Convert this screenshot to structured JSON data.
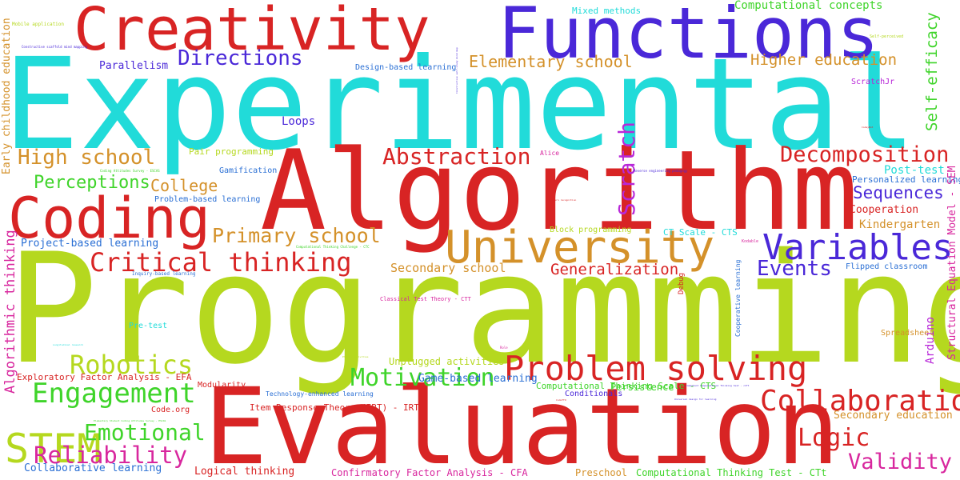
{
  "words": [
    {
      "text": "Programming",
      "color": "#b5d81f"
    },
    {
      "text": "Experimental",
      "color": "#21dbd9"
    },
    {
      "text": "Algorithm",
      "color": "#d82424"
    },
    {
      "text": "Evaluation",
      "color": "#d82424"
    },
    {
      "text": "Functions",
      "color": "#4a28d8"
    },
    {
      "text": "Creativity",
      "color": "#d82424"
    },
    {
      "text": "Coding",
      "color": "#d82424"
    },
    {
      "text": "University",
      "color": "#d4912a"
    },
    {
      "text": "Problem solving",
      "color": "#d82424"
    },
    {
      "text": "Variables",
      "color": "#4a28d8"
    },
    {
      "text": "STEM",
      "color": "#b5d81f"
    },
    {
      "text": "Collaboration",
      "color": "#d82424"
    },
    {
      "text": "Critical thinking",
      "color": "#d82424"
    },
    {
      "text": "Engagement",
      "color": "#3fd42a"
    },
    {
      "text": "Robotics",
      "color": "#b5d81f"
    },
    {
      "text": "Motivation",
      "color": "#3fd42a"
    },
    {
      "text": "Abstraction",
      "color": "#d82424"
    },
    {
      "text": "Decomposition",
      "color": "#d82424"
    },
    {
      "text": "Primary school",
      "color": "#d4912a"
    },
    {
      "text": "Reliability",
      "color": "#d8279e"
    },
    {
      "text": "Emotional",
      "color": "#3fd42a"
    },
    {
      "text": "Logic",
      "color": "#d82424"
    },
    {
      "text": "Validity",
      "color": "#d8279e"
    },
    {
      "text": "Scratch",
      "color": "#b828d8"
    },
    {
      "text": "Directions",
      "color": "#4a28d8"
    },
    {
      "text": "High school",
      "color": "#d4912a"
    },
    {
      "text": "Events",
      "color": "#4a28d8"
    },
    {
      "text": "Sequences",
      "color": "#4a28d8"
    },
    {
      "text": "Perceptions",
      "color": "#3fd42a"
    },
    {
      "text": "Elementary school",
      "color": "#d4912a"
    },
    {
      "text": "Higher education",
      "color": "#d4912a"
    },
    {
      "text": "Self-efficacy",
      "color": "#3fd42a"
    },
    {
      "text": "College",
      "color": "#d4912a"
    },
    {
      "text": "Generalization",
      "color": "#d82424"
    },
    {
      "text": "Algorithmic thinking",
      "color": "#d8279e"
    },
    {
      "text": "Secondary school",
      "color": "#d4912a"
    },
    {
      "text": "Computational concepts",
      "color": "#3fd42a"
    },
    {
      "text": "Early childhood education",
      "color": "#d4912a"
    },
    {
      "text": "Structural Equation Model - SEM",
      "color": "#d8279e"
    },
    {
      "text": "Arduino",
      "color": "#b828d8"
    },
    {
      "text": "Secondary education",
      "color": "#d4912a"
    },
    {
      "text": "Kindergarten",
      "color": "#d4912a"
    },
    {
      "text": "Cooperation",
      "color": "#d82424"
    },
    {
      "text": "Post-test",
      "color": "#21dbd9"
    },
    {
      "text": "Personalized learning",
      "color": "#2a6fd4"
    },
    {
      "text": "Loops",
      "color": "#4a28d8"
    },
    {
      "text": "Parallelism",
      "color": "#4a28d8"
    },
    {
      "text": "Mixed methods",
      "color": "#21dbd9"
    },
    {
      "text": "Design-based learning",
      "color": "#2a6fd4"
    },
    {
      "text": "Pair programming",
      "color": "#b5d81f"
    },
    {
      "text": "Gamification",
      "color": "#2a6fd4"
    },
    {
      "text": "Problem-based learning",
      "color": "#2a6fd4"
    },
    {
      "text": "Project-based learning",
      "color": "#2a6fd4"
    },
    {
      "text": "CT Scale - CTS",
      "color": "#21dbd9"
    },
    {
      "text": "Block programming",
      "color": "#b5d81f"
    },
    {
      "text": "Flipped classroom",
      "color": "#2a6fd4"
    },
    {
      "text": "ScratchJr",
      "color": "#b828d8"
    },
    {
      "text": "Exploratory Factor Analysis - EFA",
      "color": "#d82424"
    },
    {
      "text": "Unplugged activities",
      "color": "#b5d81f"
    },
    {
      "text": "Computational Thinking Scale - CTS",
      "color": "#3fd42a"
    },
    {
      "text": "Game-based learning",
      "color": "#2a6fd4"
    },
    {
      "text": "Conditionals",
      "color": "#4a28d8"
    },
    {
      "text": "Modularity",
      "color": "#d82424"
    },
    {
      "text": "Technology-enhanced learning",
      "color": "#2a6fd4"
    },
    {
      "text": "Persistence",
      "color": "#3fd42a"
    },
    {
      "text": "Code.org",
      "color": "#d82424"
    },
    {
      "text": "Item Response Theory (IRT) - IRT",
      "color": "#d82424"
    },
    {
      "text": "Collaborative learning",
      "color": "#2a6fd4"
    },
    {
      "text": "Logical thinking",
      "color": "#d82424"
    },
    {
      "text": "Confirmatory Factor Analysis - CFA",
      "color": "#d8279e"
    },
    {
      "text": "Preschool",
      "color": "#d4912a"
    },
    {
      "text": "Computational Thinking Test - CTt",
      "color": "#3fd42a"
    },
    {
      "text": "Spreadsheet",
      "color": "#d4912a"
    },
    {
      "text": "Pre-test",
      "color": "#21dbd9"
    },
    {
      "text": "Debug",
      "color": "#d82424"
    },
    {
      "text": "Cooperative learning",
      "color": "#2a6fd4"
    },
    {
      "text": "Alice",
      "color": "#d8279e"
    },
    {
      "text": "Mobile application",
      "color": "#b5d81f"
    },
    {
      "text": "Constructive scaffold mind mapping",
      "color": "#4a28d8"
    },
    {
      "text": "Self-perceived",
      "color": "#b5d81f"
    },
    {
      "text": "Constructive self-study mind map",
      "color": "#4a28d8"
    },
    {
      "text": "Coding Attitudes Survey - ESCAS",
      "color": "#3fd42a"
    },
    {
      "text": "Reverse engineering pedagogy",
      "color": "#4a28d8"
    },
    {
      "text": "Pattern recognition",
      "color": "#d82424"
    },
    {
      "text": "CodeyBot",
      "color": "#d82424"
    },
    {
      "text": "Kodable",
      "color": "#d8279e"
    },
    {
      "text": "Computational Thinking Challenge - CTC",
      "color": "#3fd42a"
    },
    {
      "text": "Inquiry-based learning",
      "color": "#2a6fd4"
    },
    {
      "text": "Classical Test Theory - CTT",
      "color": "#d8279e"
    },
    {
      "text": "Longitudinal research",
      "color": "#21dbd9"
    },
    {
      "text": "Plugged activities",
      "color": "#b5d81f"
    },
    {
      "text": "Role",
      "color": "#d8279e"
    },
    {
      "text": "Competent Computational Thinking test - cCTt",
      "color": "#4a28d8"
    },
    {
      "text": "CodeTTO",
      "color": "#d82424"
    },
    {
      "text": "Universal design for learning",
      "color": "#4a28d8"
    },
    {
      "text": "Elementary Student Coding Attitudes Survey - ESCAS",
      "color": "#3fd42a"
    }
  ]
}
